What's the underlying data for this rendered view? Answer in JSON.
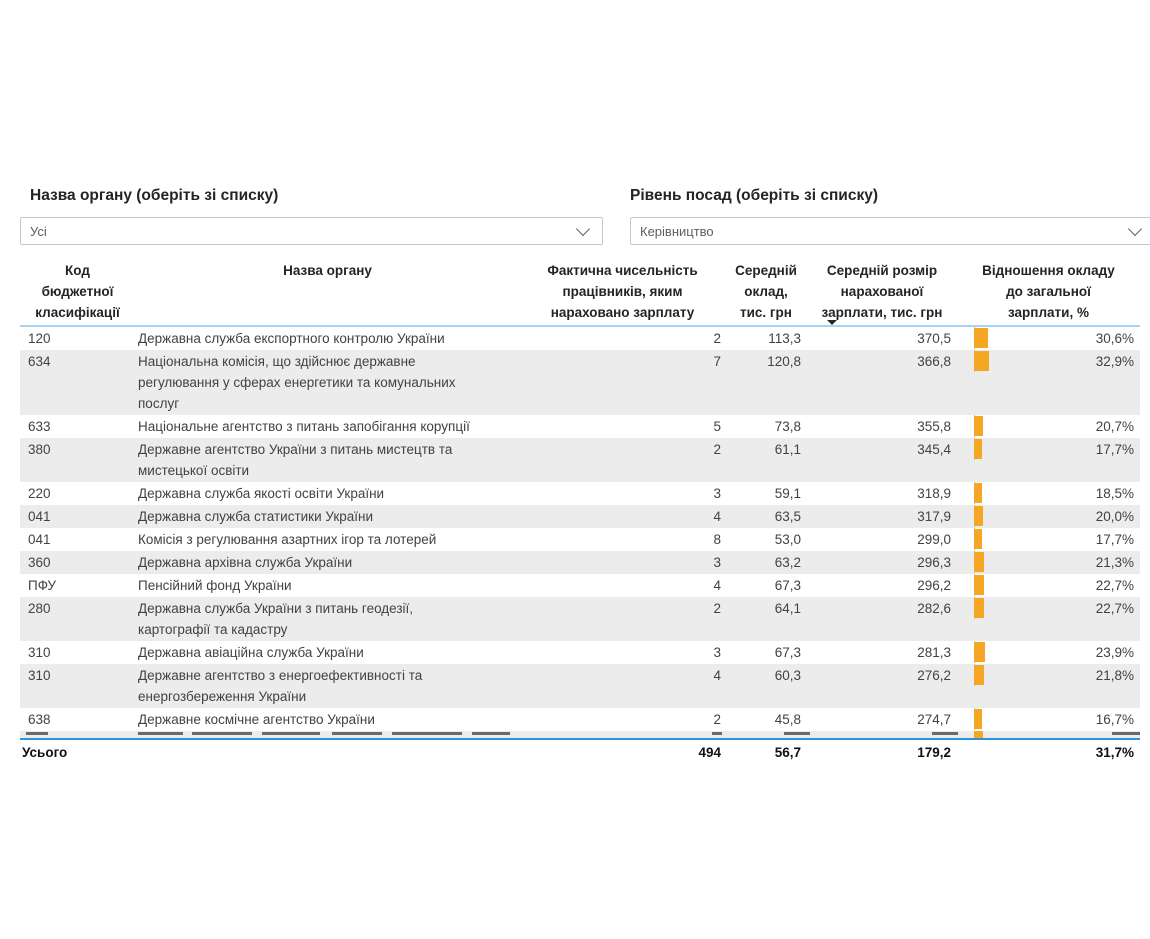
{
  "filters": [
    {
      "label": "Назва органу (оберіть зі списку)",
      "value": "Усі"
    },
    {
      "label": "Рівень посад (оберіть зі списку)",
      "value": "Керівництво"
    }
  ],
  "table": {
    "columns": [
      {
        "label": "Код\nбюджетної\nкласифікації"
      },
      {
        "label": "Назва органу"
      },
      {
        "label": "Фактична чисельність\nпрацівників, яким\nнараховано зарплату"
      },
      {
        "label": "Середній\nоклад,\nтис. грн"
      },
      {
        "label": "Середній розмір\nнарахованої\nзарплати, тис. грн",
        "sorted": "desc"
      },
      {
        "label": "Відношення окладу\nдо загальної\nзарплати, %"
      }
    ],
    "rows": [
      [
        "120",
        "Державна служба експортного контролю України",
        "2",
        "113,3",
        "370,5",
        "30,6%"
      ],
      [
        "634",
        "Національна комісія, що здійснює державне\nрегулювання у сферах енергетики та комунальних\nпослуг",
        "7",
        "120,8",
        "366,8",
        "32,9%"
      ],
      [
        "633",
        "Національне агентство з питань запобігання корупції",
        "5",
        "73,8",
        "355,8",
        "20,7%"
      ],
      [
        "380",
        "Державне агентство України з питань мистецтв та\nмистецької освіти",
        "2",
        "61,1",
        "345,4",
        "17,7%"
      ],
      [
        "220",
        "Державна служба якості освіти України",
        "3",
        "59,1",
        "318,9",
        "18,5%"
      ],
      [
        "041",
        "Державна служба статистики України",
        "4",
        "63,5",
        "317,9",
        "20,0%"
      ],
      [
        "041",
        "Комісія з регулювання азартних ігор та лотерей",
        "8",
        "53,0",
        "299,0",
        "17,7%"
      ],
      [
        "360",
        "Державна архівна служба України",
        "3",
        "63,2",
        "296,3",
        "21,3%"
      ],
      [
        "ПФУ",
        "Пенсійний фонд України",
        "4",
        "67,3",
        "296,2",
        "22,7%"
      ],
      [
        "280",
        "Державна служба України з питань геодезії,\nкартографії та кадастру",
        "2",
        "64,1",
        "282,6",
        "22,7%"
      ],
      [
        "310",
        "Державна авіаційна служба України",
        "3",
        "67,3",
        "281,3",
        "23,9%"
      ],
      [
        "310",
        "Державне агентство з енергоефективності та\nенергозбереження України",
        "4",
        "60,3",
        "276,2",
        "21,8%"
      ],
      [
        "638",
        "Державне космічне агентство України",
        "2",
        "45,8",
        "274,7",
        "16,7%"
      ]
    ],
    "total": {
      "label": "Усього",
      "count": "494",
      "salary_base": "56,7",
      "salary_accrued": "179,2",
      "ratio": "31,7%"
    }
  },
  "colors": {
    "data_bar": "#f5a623",
    "header_underline": "#a9d3ee",
    "total_separator": "#2e93da",
    "alt_row": "#ececec"
  }
}
